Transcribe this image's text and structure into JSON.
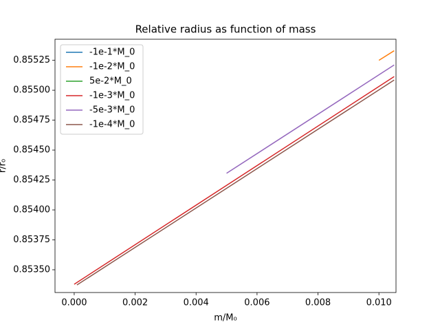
{
  "chart_data": {
    "type": "line",
    "title": "Relative radius as function of mass",
    "xlabel": "m/M₀",
    "ylabel": "r/r₀",
    "xlim": [
      -0.00063,
      0.01056
    ],
    "ylim": [
      0.85331,
      0.855426
    ],
    "xticks": [
      {
        "value": 0,
        "label": "0.000"
      },
      {
        "value": 0.002,
        "label": "0.002"
      },
      {
        "value": 0.004,
        "label": "0.004"
      },
      {
        "value": 0.006,
        "label": "0.006"
      },
      {
        "value": 0.008,
        "label": "0.008"
      },
      {
        "value": 0.01,
        "label": "0.010"
      }
    ],
    "yticks": [
      {
        "value": 0.8535,
        "label": "0.85350"
      },
      {
        "value": 0.85375,
        "label": "0.85375"
      },
      {
        "value": 0.854,
        "label": "0.85400"
      },
      {
        "value": 0.85425,
        "label": "0.85425"
      },
      {
        "value": 0.8545,
        "label": "0.85450"
      },
      {
        "value": 0.85475,
        "label": "0.85475"
      },
      {
        "value": 0.855,
        "label": "0.85500"
      },
      {
        "value": 0.85525,
        "label": "0.85525"
      }
    ],
    "legend": "upper left",
    "series": [
      {
        "name": "-1e-1*M_0",
        "color": "#1f77b4",
        "x": [],
        "values": []
      },
      {
        "name": "-1e-2*M_0",
        "color": "#ff7f0e",
        "x": [
          0.01,
          0.0105
        ],
        "values": [
          0.85525,
          0.85533
        ]
      },
      {
        "name": "5e-2*M_0",
        "color": "#2ca02c",
        "x": [],
        "values": []
      },
      {
        "name": "-1e-3*M_0",
        "color": "#d62728",
        "x": [
          0,
          0.0105
        ],
        "values": [
          0.853379,
          0.855114
        ]
      },
      {
        "name": "-5e-3*M_0",
        "color": "#9467bd",
        "x": [
          0.005,
          0.0105
        ],
        "values": [
          0.854306,
          0.855211
        ]
      },
      {
        "name": "-1e-4*M_0",
        "color": "#8c564b",
        "x": [
          9e-05,
          0.0105
        ],
        "values": [
          0.853373,
          0.855085
        ]
      }
    ]
  }
}
